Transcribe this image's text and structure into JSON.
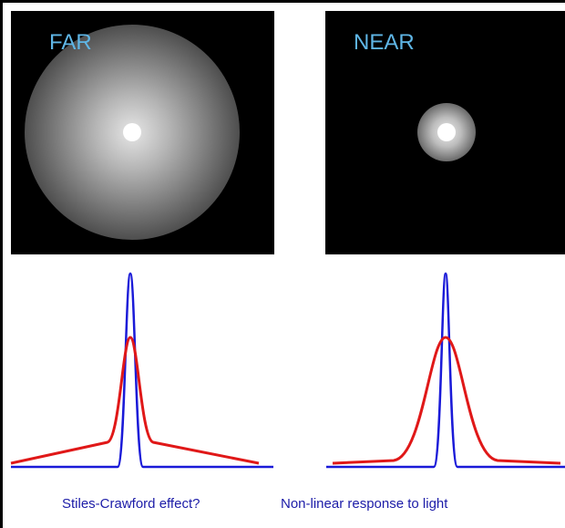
{
  "panels": [
    {
      "label": "FAR"
    },
    {
      "label": "NEAR"
    }
  ],
  "captions": [
    "Stiles-Crawford effect?",
    "Non-linear response to light"
  ]
}
